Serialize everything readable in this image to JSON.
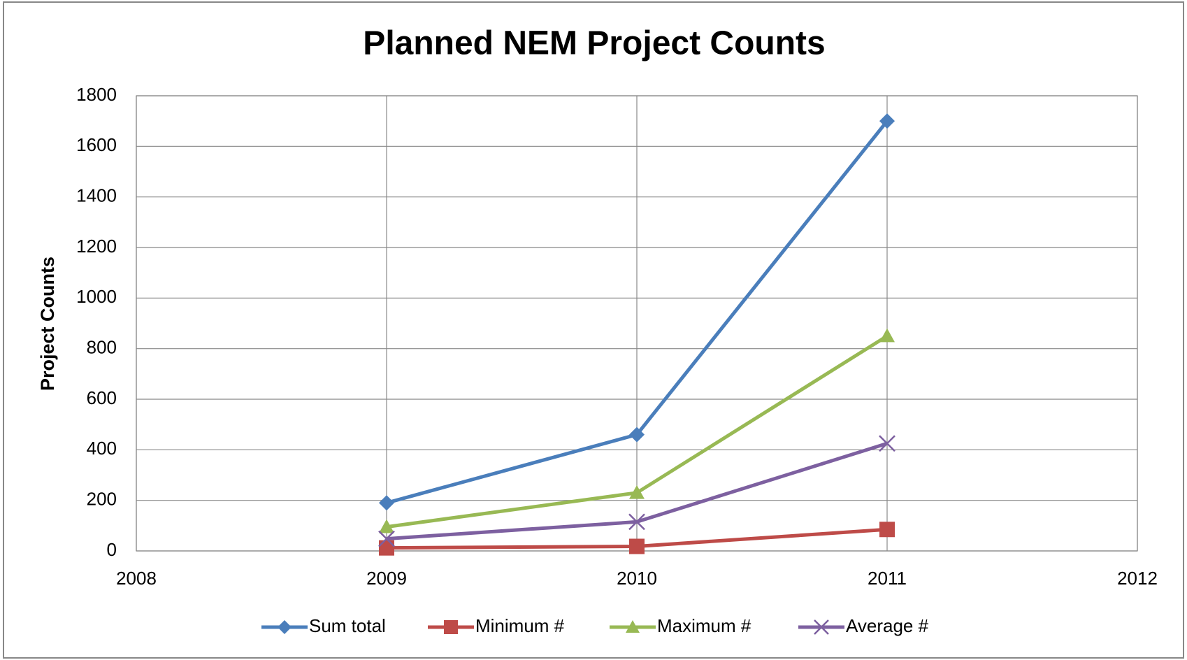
{
  "chart_data": {
    "type": "line",
    "title": "Planned NEM Project Counts",
    "y_label": "Project Counts",
    "x": [
      2009,
      2010,
      2011
    ],
    "series": [
      {
        "name": "Sum total",
        "color": "#4a7ebb",
        "marker": "diamond",
        "values": [
          190,
          460,
          1700
        ]
      },
      {
        "name": "Minimum #",
        "color": "#be4b48",
        "marker": "square",
        "values": [
          12,
          18,
          85
        ]
      },
      {
        "name": "Maximum #",
        "color": "#98b954",
        "marker": "triangle",
        "values": [
          95,
          230,
          850
        ]
      },
      {
        "name": "Average #",
        "color": "#7d60a0",
        "marker": "x",
        "values": [
          48,
          115,
          425
        ]
      }
    ],
    "xlim": [
      2008,
      2012
    ],
    "xticks": [
      2008,
      2009,
      2010,
      2011,
      2012
    ],
    "ylim": [
      0,
      1800
    ],
    "yticks": [
      0,
      200,
      400,
      600,
      800,
      1000,
      1200,
      1400,
      1600,
      1800
    ],
    "grid": true,
    "legend": "bottom"
  }
}
